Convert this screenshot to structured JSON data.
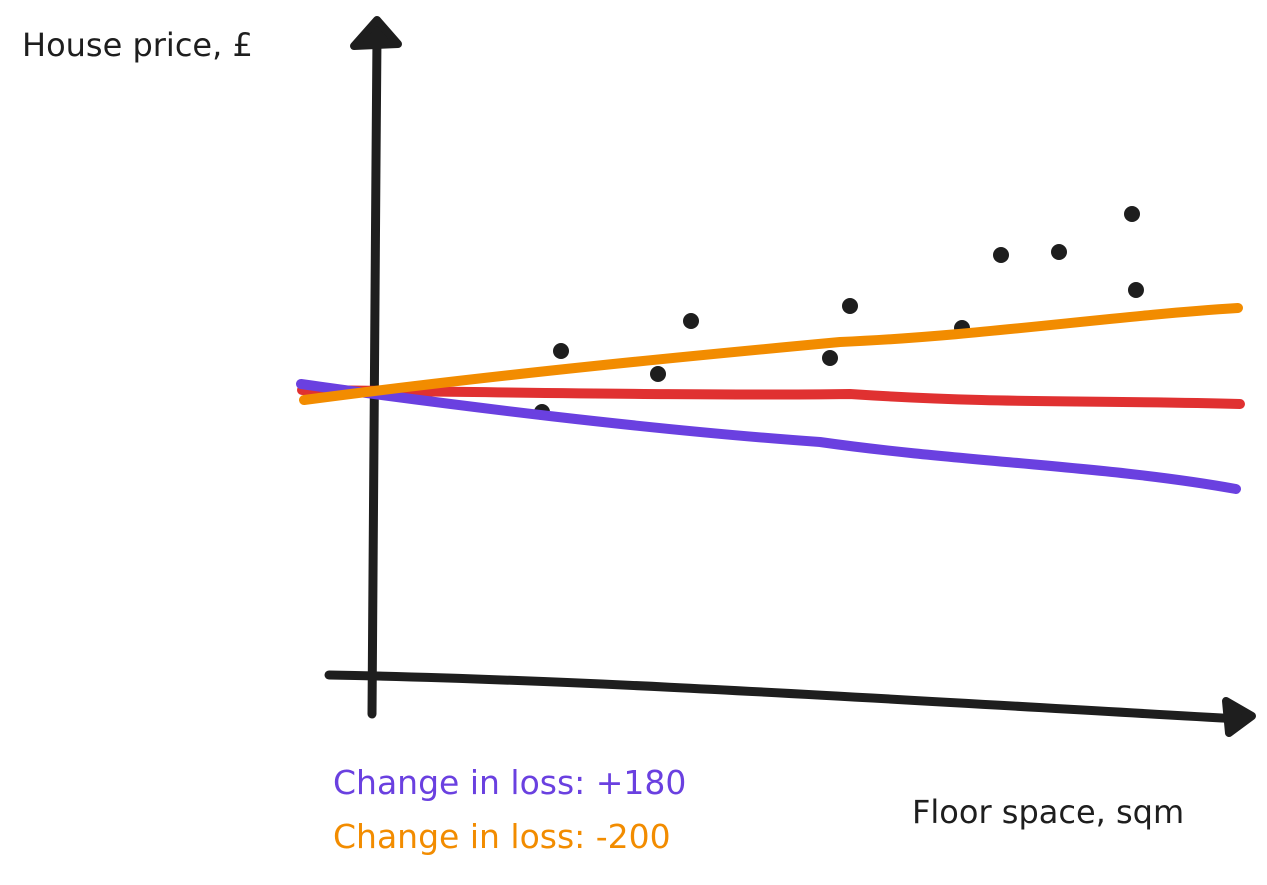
{
  "title": "",
  "axes": {
    "y_label": "House price, £",
    "x_label": "Floor space, sqm"
  },
  "annotations": [
    {
      "text": "Change in loss: +180",
      "color": "#6a40e0",
      "series": "purple"
    },
    {
      "text": "Change in loss: -200",
      "color": "#f28c00",
      "series": "orange"
    }
  ],
  "colors": {
    "axis": "#1e1e1e",
    "points": "#1e1e1e",
    "red_line": "#e03131",
    "purple_line": "#6a40e0",
    "orange_line": "#f28c00"
  }
}
